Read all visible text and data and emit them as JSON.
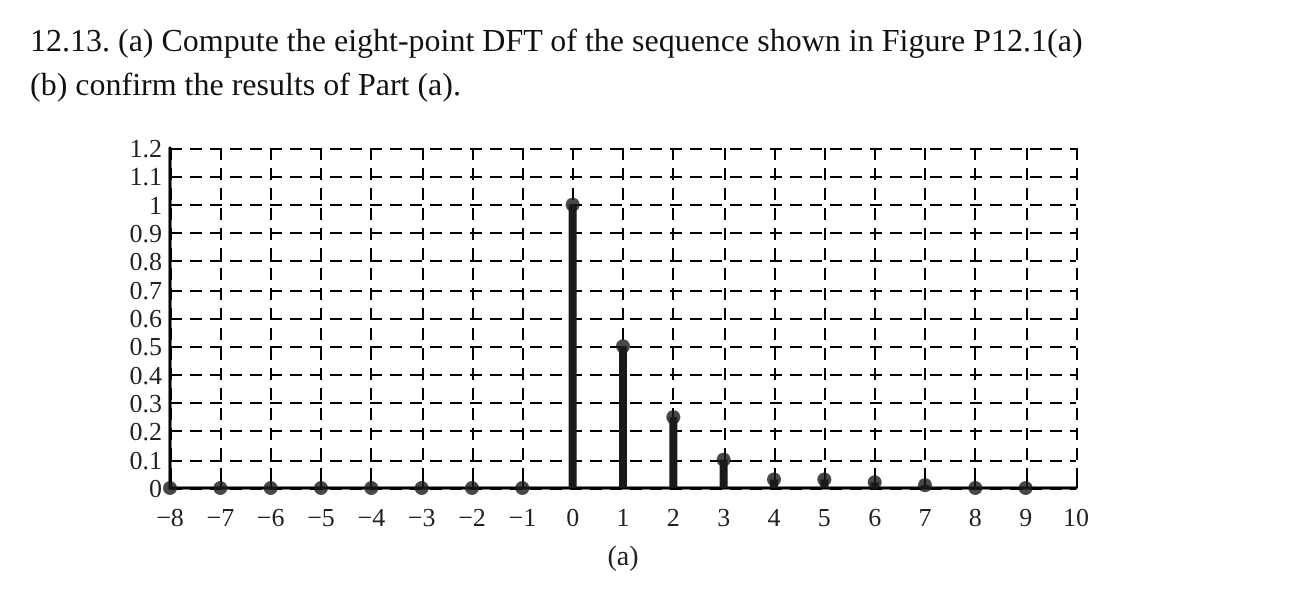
{
  "chart_data": {
    "type": "lollipop",
    "title": "12.13. (a) Compute the eight-point DFT of the sequence shown in Figure P12.1(a)",
    "subtitle": "(b) confirm the results of Part (a).",
    "xlabel": "(a)",
    "x": [
      -8,
      -7,
      -6,
      -5,
      -4,
      -3,
      -2,
      -1,
      0,
      1,
      2,
      3,
      4,
      5,
      6,
      7,
      8,
      9
    ],
    "values": [
      0,
      0,
      0,
      0,
      0,
      0,
      0,
      0,
      1,
      0.5,
      0.25,
      0.1,
      0.03,
      0.03,
      0.02,
      0.01,
      0,
      0
    ],
    "color": "#1a1a1a",
    "xlim": [
      -8,
      10
    ],
    "xticks": [
      -8,
      -7,
      -6,
      -5,
      -4,
      -3,
      -2,
      -1,
      0,
      1,
      2,
      3,
      4,
      5,
      6,
      7,
      8,
      9,
      10
    ],
    "ylim": [
      0,
      1.2
    ],
    "yticks": [
      0,
      0.1,
      0.2,
      0.3,
      0.4,
      0.5,
      0.6,
      0.7,
      0.8,
      0.9,
      1,
      1.1,
      1.2
    ],
    "grid": true,
    "marker": "circle"
  }
}
